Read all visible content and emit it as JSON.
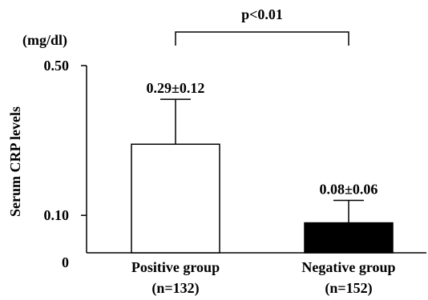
{
  "chart_data": {
    "type": "bar",
    "categories": [
      {
        "line1": "Positive group",
        "line2": "(n=132)"
      },
      {
        "line1": "Negative group",
        "line2": "(n=152)"
      }
    ],
    "series": [
      {
        "values": [
          0.29,
          0.08
        ],
        "errors": [
          0.12,
          0.06
        ],
        "fills": [
          "#ffffff",
          "#000000"
        ]
      }
    ],
    "data_labels": [
      "0.29±0.12",
      "0.08±0.06"
    ],
    "ylabel": "Serum CRP levels",
    "yunit": "(mg/dl)",
    "ylim": [
      0,
      0.5
    ],
    "yticks": [
      {
        "value": 0,
        "label": "0"
      },
      {
        "value": 0.1,
        "label": "0.10"
      },
      {
        "value": 0.5,
        "label": "0.50"
      }
    ],
    "significance": {
      "label": "p<0.01",
      "between": [
        0,
        1
      ]
    },
    "grid": false,
    "legend": "none"
  }
}
